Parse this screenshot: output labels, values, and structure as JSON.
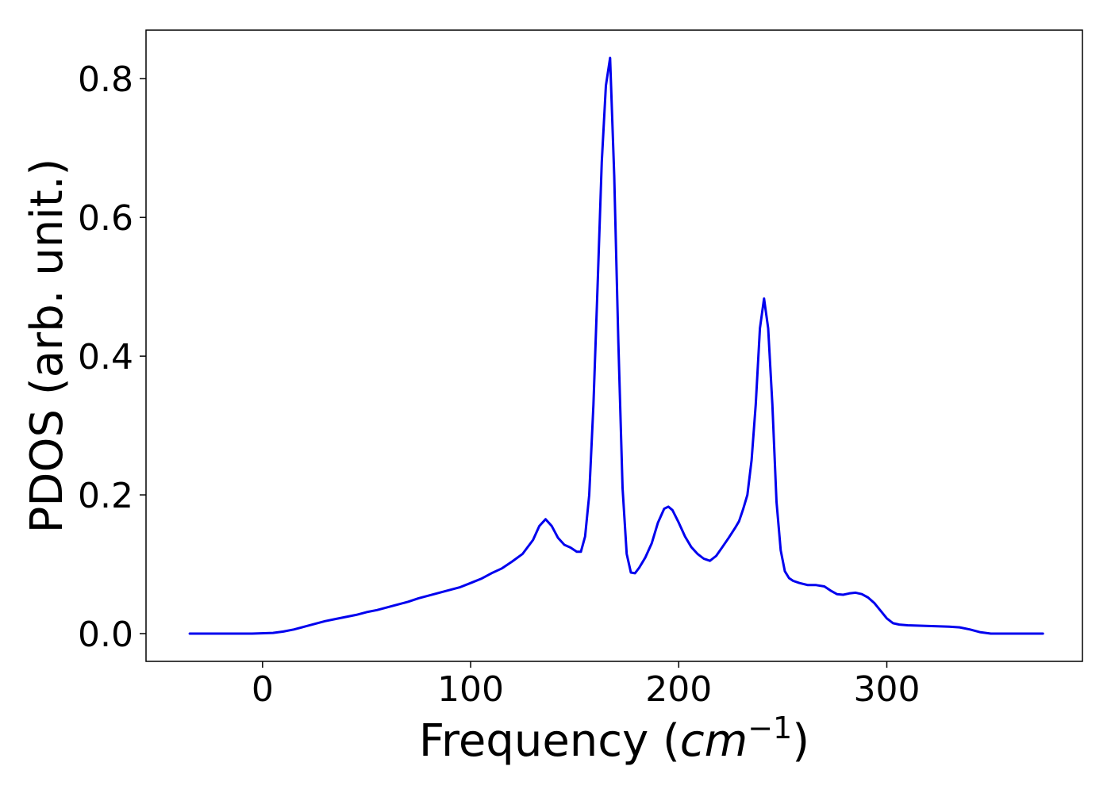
{
  "chart_data": {
    "type": "line",
    "xlabel": "Frequency (",
    "xlabel_math": "cm",
    "xlabel_sup": "−1",
    "xlabel_end": ")",
    "ylabel": "PDOS (arb. unit.)",
    "xlim": [
      -56,
      394
    ],
    "ylim": [
      -0.04,
      0.87
    ],
    "xticks": [
      0,
      100,
      200,
      300
    ],
    "xtick_labels": [
      "0",
      "100",
      "200",
      "300"
    ],
    "yticks": [
      0.0,
      0.2,
      0.4,
      0.6,
      0.8
    ],
    "ytick_labels": [
      "0.0",
      "0.2",
      "0.4",
      "0.6",
      "0.8"
    ],
    "grid": false,
    "line_color": "#0000ee",
    "series": [
      {
        "x": [
          -35,
          -5,
          5,
          10,
          15,
          20,
          25,
          30,
          35,
          40,
          45,
          50,
          55,
          60,
          65,
          70,
          75,
          80,
          85,
          90,
          95,
          100,
          105,
          110,
          115,
          120,
          125,
          130,
          133,
          136,
          139,
          142,
          145,
          148,
          151,
          153,
          155,
          157,
          159,
          161,
          163,
          165,
          167,
          169,
          171,
          173,
          175,
          177,
          179,
          181,
          184,
          187,
          190,
          193,
          195,
          197,
          200,
          203,
          206,
          209,
          212,
          215,
          218,
          221,
          224,
          227,
          229,
          231,
          233,
          235,
          237,
          239,
          241,
          243,
          245,
          247,
          249,
          251,
          253,
          255,
          258,
          262,
          266,
          270,
          273,
          276,
          279,
          282,
          285,
          288,
          291,
          294,
          297,
          300,
          303,
          306,
          310,
          320,
          330,
          335,
          340,
          345,
          350,
          360,
          375
        ],
        "y": [
          0.0,
          0.0,
          0.001,
          0.003,
          0.006,
          0.01,
          0.014,
          0.018,
          0.021,
          0.024,
          0.027,
          0.031,
          0.034,
          0.038,
          0.042,
          0.046,
          0.051,
          0.055,
          0.059,
          0.063,
          0.067,
          0.073,
          0.079,
          0.087,
          0.094,
          0.104,
          0.115,
          0.135,
          0.155,
          0.165,
          0.155,
          0.138,
          0.128,
          0.124,
          0.118,
          0.118,
          0.14,
          0.2,
          0.33,
          0.5,
          0.68,
          0.79,
          0.83,
          0.66,
          0.42,
          0.21,
          0.115,
          0.088,
          0.087,
          0.095,
          0.11,
          0.13,
          0.16,
          0.18,
          0.183,
          0.178,
          0.16,
          0.14,
          0.125,
          0.115,
          0.108,
          0.105,
          0.112,
          0.125,
          0.138,
          0.152,
          0.162,
          0.18,
          0.2,
          0.25,
          0.33,
          0.44,
          0.483,
          0.44,
          0.33,
          0.19,
          0.12,
          0.09,
          0.08,
          0.076,
          0.073,
          0.07,
          0.07,
          0.068,
          0.062,
          0.057,
          0.056,
          0.058,
          0.059,
          0.057,
          0.052,
          0.044,
          0.033,
          0.022,
          0.015,
          0.013,
          0.012,
          0.011,
          0.01,
          0.009,
          0.006,
          0.002,
          0.0,
          0.0,
          0.0
        ]
      }
    ]
  }
}
